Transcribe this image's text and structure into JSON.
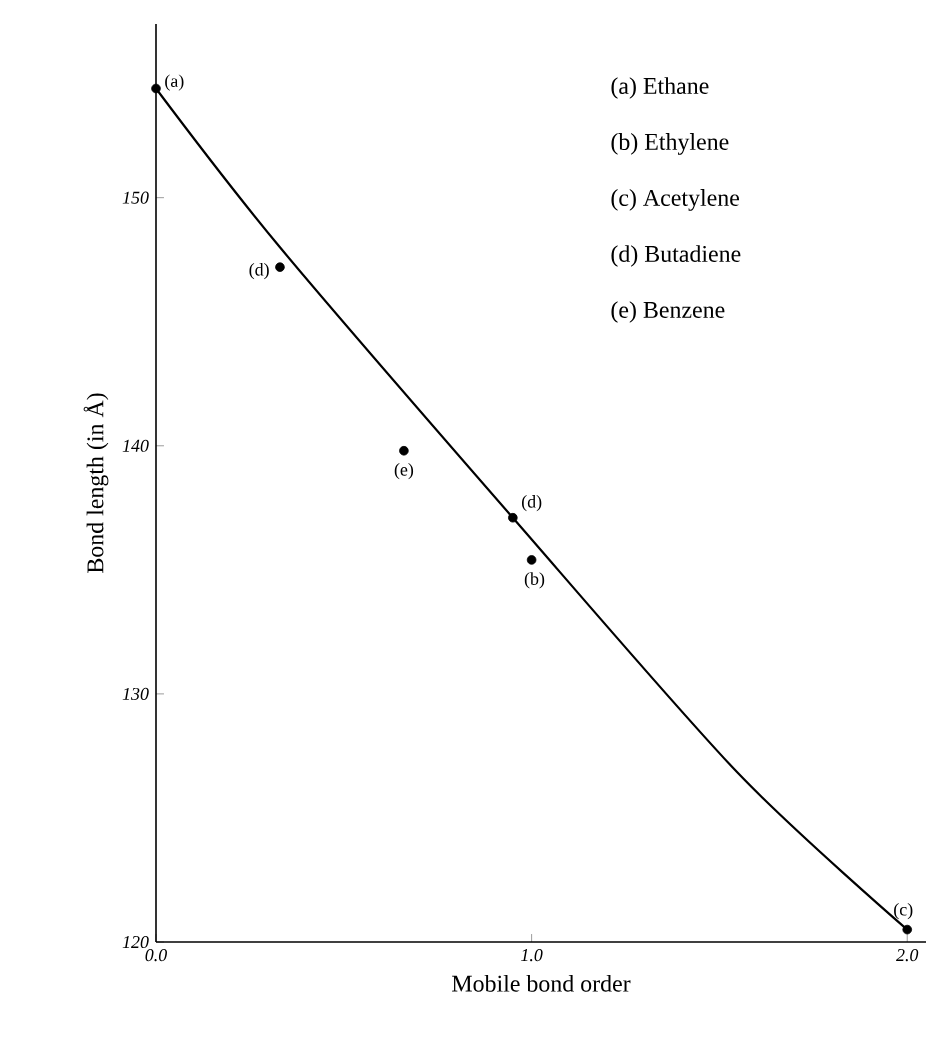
{
  "chart_data": {
    "type": "scatter",
    "xlabel": "Mobile bond order",
    "ylabel": "Bond length (in Å)",
    "xlim": [
      0,
      2.05
    ],
    "ylim": [
      120,
      157
    ],
    "xticks": [
      {
        "value": 0,
        "label": "0.0"
      },
      {
        "value": 1,
        "label": "1.0"
      },
      {
        "value": 2,
        "label": "2.0"
      }
    ],
    "yticks": [
      120,
      130,
      140,
      150
    ],
    "series": [
      {
        "color": "#000000",
        "x": [
          0,
          0.33,
          0.66,
          0.95,
          1.0,
          2.0
        ],
        "values": [
          154.4,
          147.2,
          139.8,
          137.1,
          135.4,
          120.5
        ]
      },
      {
        "type": "line",
        "color": "#000000",
        "marker": "none",
        "line_style": "solid",
        "x": [
          0,
          0.33,
          0.95,
          1.55,
          2.0
        ],
        "values": [
          154.4,
          148.0,
          137.1,
          126.8,
          120.5
        ]
      }
    ],
    "annotations": [
      {
        "text": "(a)",
        "x": 0,
        "y": 154.4
      },
      {
        "text": "(d)",
        "x": 0.33,
        "y": 147.2
      },
      {
        "text": "(e)",
        "x": 0.66,
        "y": 139.8
      },
      {
        "text": "(d)",
        "x": 0.95,
        "y": 137.1
      },
      {
        "text": "(b)",
        "x": 1.0,
        "y": 135.4
      },
      {
        "text": "(c)",
        "x": 2.0,
        "y": 120.5
      },
      "(a) Ethane",
      "(b) Ethylene",
      "(c) Acetylene",
      "(d) Butadiene",
      "(e) Benzene"
    ],
    "marker": "circle",
    "grid": false
  }
}
